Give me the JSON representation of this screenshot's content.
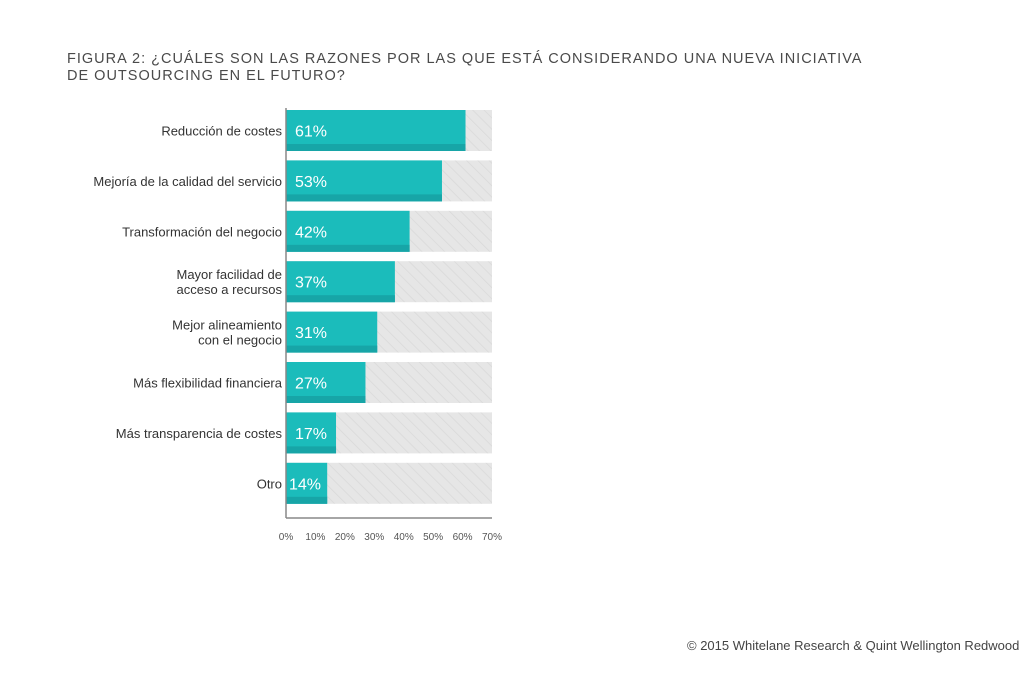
{
  "chart_data": {
    "type": "bar",
    "orientation": "horizontal",
    "title": "FIGURA 2: ¿CUÁLES SON LAS RAZONES POR LAS QUE ESTÁ CONSIDERANDO UNA NUEVA INICIATIVA DE OUTSOURCING EN EL FUTURO?",
    "categories": [
      [
        "Reducción de costes"
      ],
      [
        "Mejoría de la calidad del servicio"
      ],
      [
        "Transformación del negocio"
      ],
      [
        "Mayor facilidad de",
        "acceso a recursos"
      ],
      [
        "Mejor alineamiento",
        "con el negocio"
      ],
      [
        "Más flexibilidad financiera"
      ],
      [
        "Más transparencia de costes"
      ],
      [
        "Otro"
      ]
    ],
    "values": [
      61,
      53,
      42,
      37,
      31,
      27,
      17,
      14
    ],
    "data_labels": [
      "61%",
      "53%",
      "42%",
      "37%",
      "31%",
      "27%",
      "17%",
      "14%"
    ],
    "xlim": [
      0,
      70
    ],
    "xticks": [
      "0%",
      "10%",
      "20%",
      "30%",
      "40%",
      "50%",
      "60%",
      "70%"
    ],
    "xlabel": "",
    "ylabel": "",
    "colors": {
      "bar": "#1bbcbb",
      "bar_shade": "#17a5a7",
      "background_bar": "#e6e6e6"
    }
  },
  "footer": "© 2015 Whitelane Research & Quint Wellington Redwood"
}
